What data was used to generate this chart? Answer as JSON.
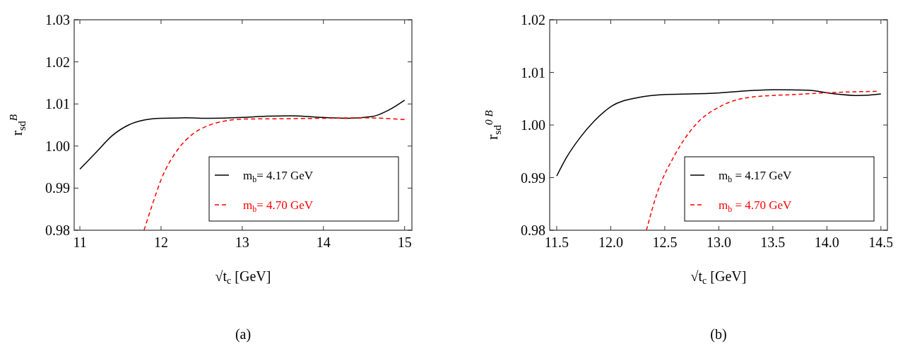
{
  "chart_data": [
    {
      "type": "line",
      "xlabel": "√t$_{c}$ [GeV]",
      "ylabel": "r$_{sd}$$^{B}$",
      "xlim": [
        10.93,
        15.09
      ],
      "ylim": [
        0.98,
        1.03
      ],
      "xticks": [
        11,
        12,
        13,
        14,
        15
      ],
      "yticks": [
        {
          "value": 0.98,
          "label": "0.98"
        },
        {
          "value": 0.99,
          "label": "0.99"
        },
        {
          "value": 1.0,
          "label": "1.00"
        },
        {
          "value": 1.01,
          "label": "1.01"
        },
        {
          "value": 1.02,
          "label": "1.02"
        },
        {
          "value": 1.03,
          "label": "1.03"
        }
      ],
      "legend": "bottom right",
      "grid": false,
      "annotations": [
        "(a)"
      ],
      "series": [
        {
          "name": "m$_{b}$= 4.17 GeV",
          "color": "#000000",
          "line_style": "solid",
          "x": [
            11,
            11.2,
            11.4,
            11.6,
            11.8,
            12,
            12.3,
            12.6,
            13,
            13.3,
            13.6,
            14,
            14.3,
            14.6,
            14.8,
            15
          ],
          "values": [
            0.9945,
            0.9985,
            1.0025,
            1.005,
            1.0062,
            1.0066,
            1.0067,
            1.0066,
            1.0068,
            1.0071,
            1.0072,
            1.0068,
            1.0066,
            1.007,
            1.0085,
            1.0109
          ]
        },
        {
          "name": "m$_{b}$= 4.70 GeV",
          "color": "#ff0000",
          "line_style": "dashed",
          "x": [
            11.79,
            11.9,
            12,
            12.2,
            12.4,
            12.6,
            12.8,
            13,
            13.5,
            14,
            14.5,
            15
          ],
          "values": [
            0.98,
            0.9865,
            0.992,
            0.999,
            1.003,
            1.005,
            1.006,
            1.0064,
            1.0065,
            1.0066,
            1.0067,
            1.0063
          ]
        }
      ]
    },
    {
      "type": "line",
      "xlabel": "√t$_{c}$  [GeV]",
      "ylabel": "r$_{sd}$$^{0 B}$",
      "xlim": [
        11.435,
        14.56
      ],
      "ylim": [
        0.98,
        1.02
      ],
      "xticks": [
        {
          "value": 11.5,
          "label": "11.5"
        },
        {
          "value": 12,
          "label": "12.0"
        },
        {
          "value": 12.5,
          "label": "12.5"
        },
        {
          "value": 13,
          "label": "13.0"
        },
        {
          "value": 13.5,
          "label": "13.5"
        },
        {
          "value": 14,
          "label": "14.0"
        },
        {
          "value": 14.5,
          "label": "14.5"
        }
      ],
      "yticks": [
        {
          "value": 0.98,
          "label": "0.98"
        },
        {
          "value": 0.99,
          "label": "0.99"
        },
        {
          "value": 1.0,
          "label": "1.00"
        },
        {
          "value": 1.01,
          "label": "1.01"
        },
        {
          "value": 1.02,
          "label": "1.02"
        }
      ],
      "legend": "bottom right",
      "grid": false,
      "annotations": [
        "(b)"
      ],
      "series": [
        {
          "name": "m$_{b}$ = 4.17 GeV",
          "color": "#000000",
          "line_style": "solid",
          "x": [
            11.5,
            11.59,
            11.72,
            11.85,
            12.01,
            12.25,
            12.51,
            12.91,
            13.51,
            13.83,
            14.04,
            14.3,
            14.5
          ],
          "values": [
            0.9903,
            0.9938,
            0.9977,
            1.0008,
            1.0036,
            1.0052,
            1.0058,
            1.006,
            1.0067,
            1.0066,
            1.006,
            1.0056,
            1.0059
          ]
        },
        {
          "name": "m$_{b}$ = 4.70 GeV",
          "color": "#ff0000",
          "line_style": "dashed",
          "x": [
            12.33,
            12.43,
            12.59,
            12.77,
            13.04,
            13.3,
            13.7,
            14.09,
            14.46
          ],
          "values": [
            0.98,
            0.9871,
            0.9942,
            0.9997,
            1.0038,
            1.0053,
            1.0058,
            1.0062,
            1.0064
          ]
        }
      ]
    }
  ]
}
